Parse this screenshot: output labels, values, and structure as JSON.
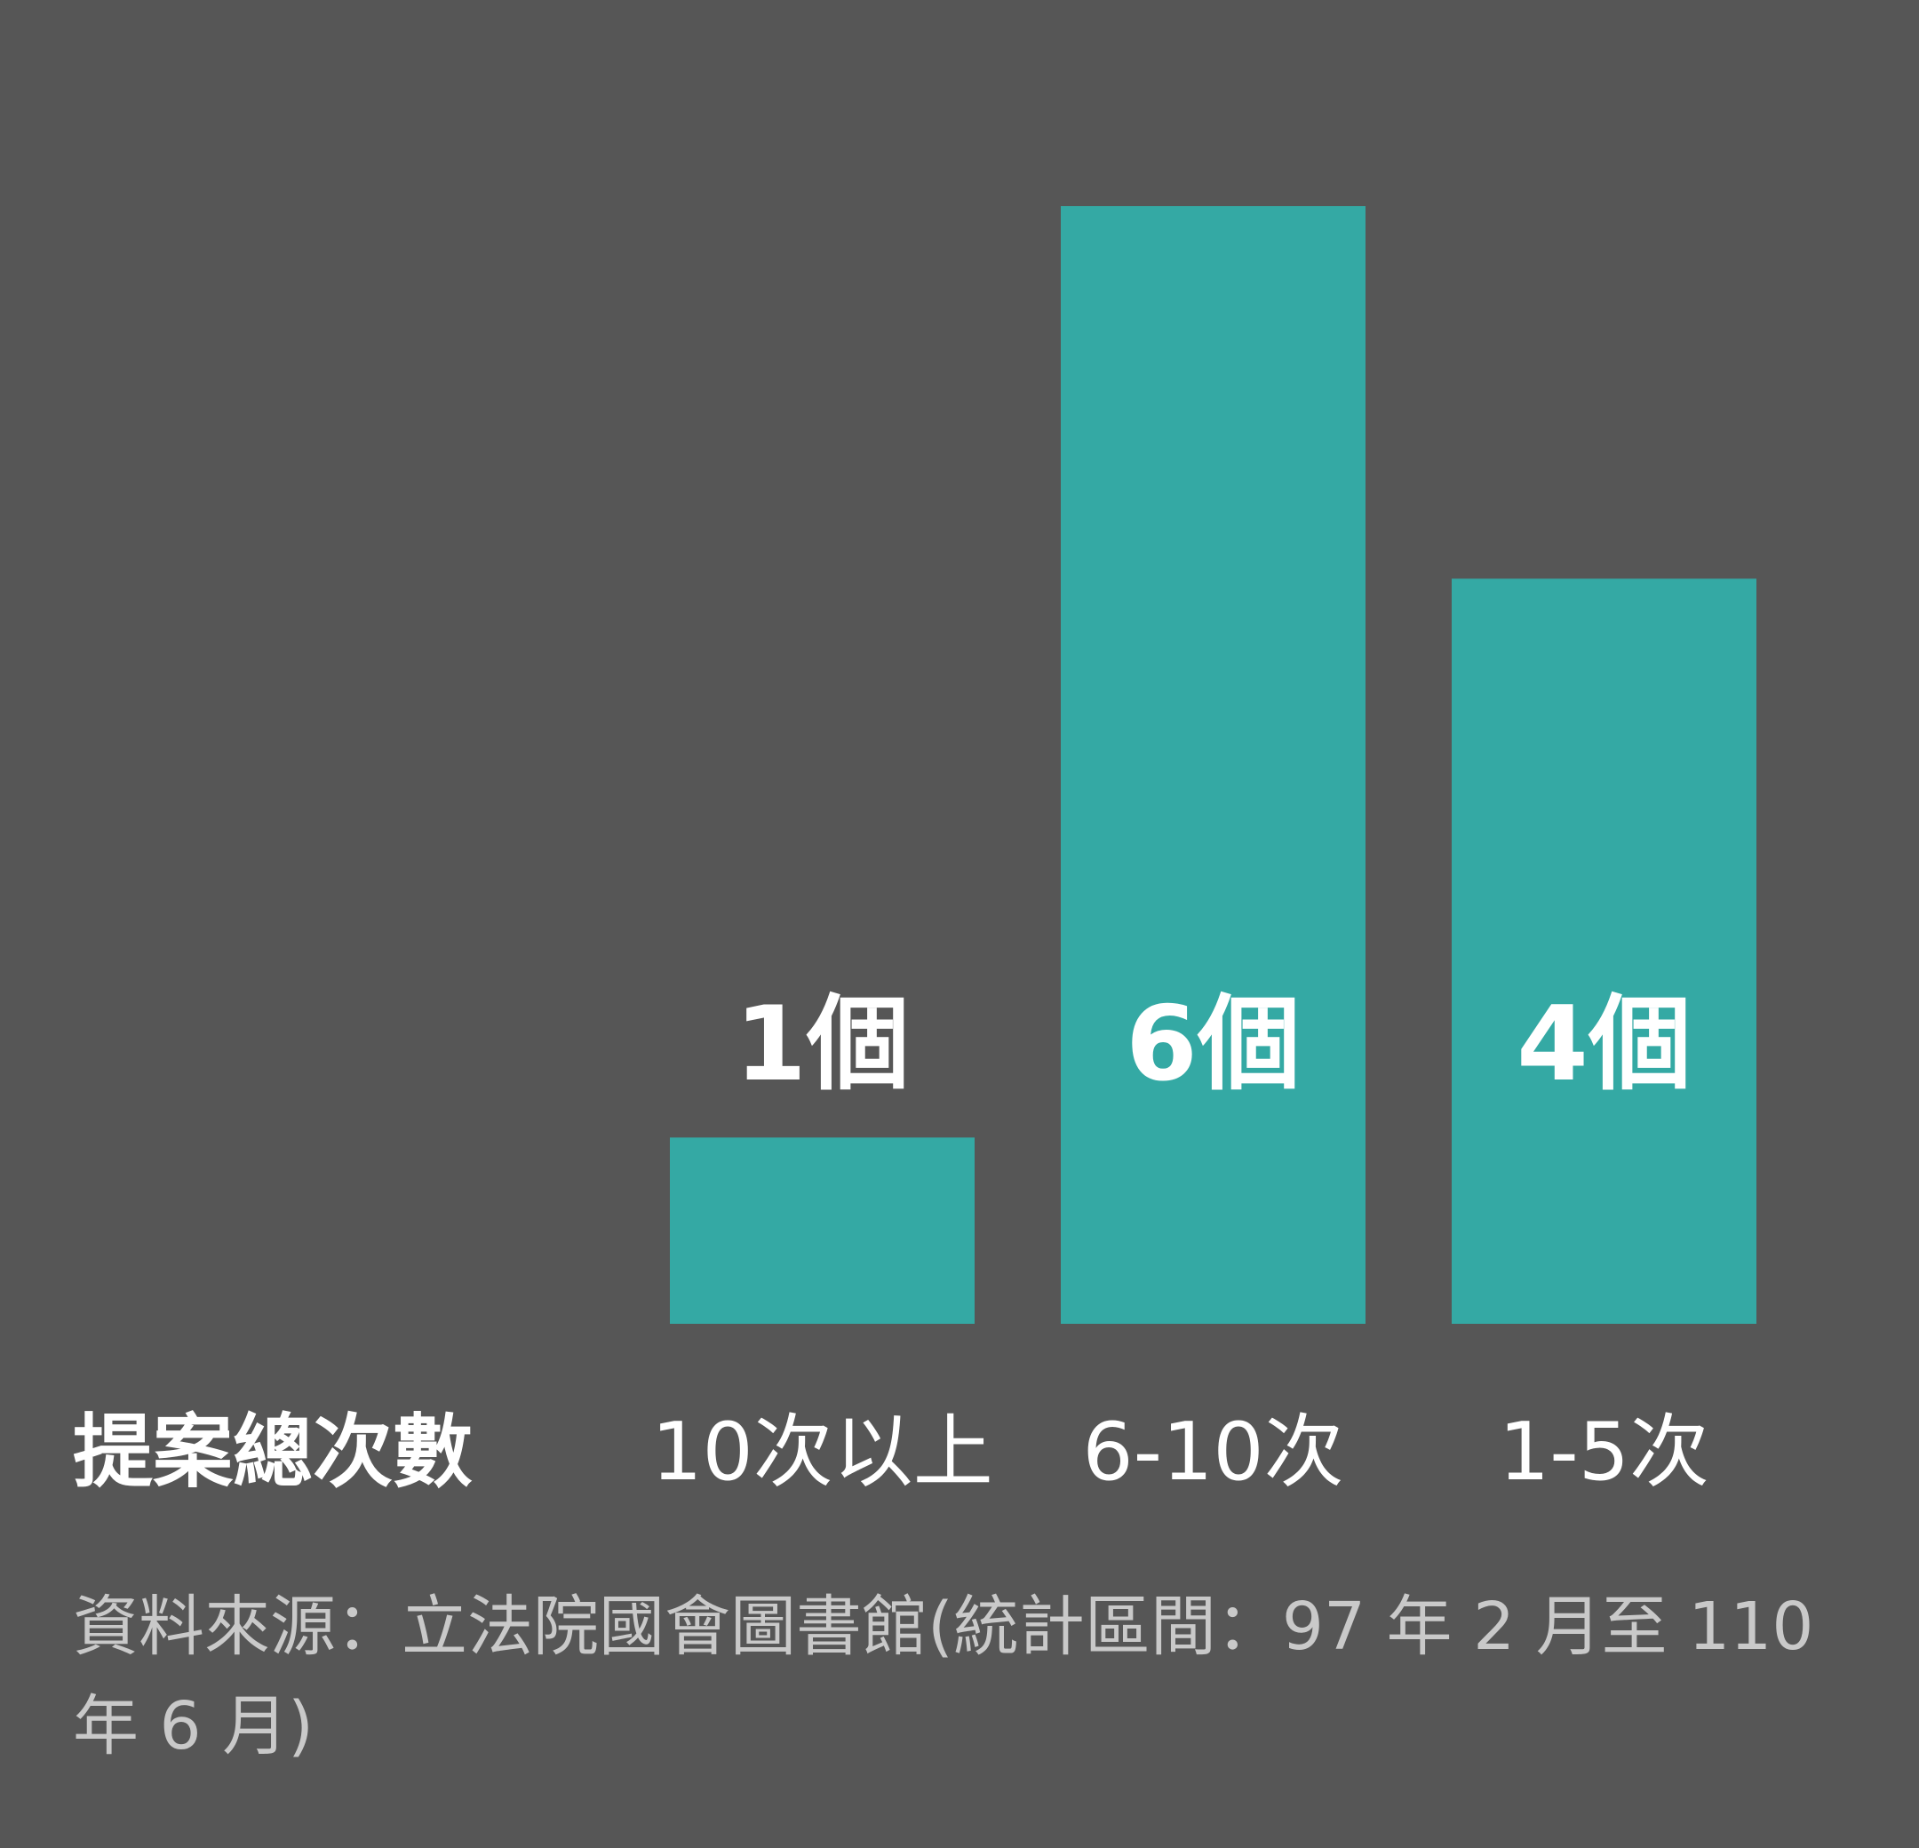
{
  "chart_data": {
    "type": "bar",
    "axis_title": "提案總次數",
    "categories": [
      "10次以上",
      "6-10次",
      "1-5次"
    ],
    "values": [
      1,
      6,
      4
    ],
    "value_labels": [
      "1個",
      "6個",
      "4個"
    ],
    "ylim": [
      0,
      6
    ],
    "grid": false,
    "bar_color": "#34a9a4",
    "background_color": "#565656"
  },
  "source": "資料來源：立法院國會圖書館(統計區間：97 年 2 月至 110 年 6 月)"
}
